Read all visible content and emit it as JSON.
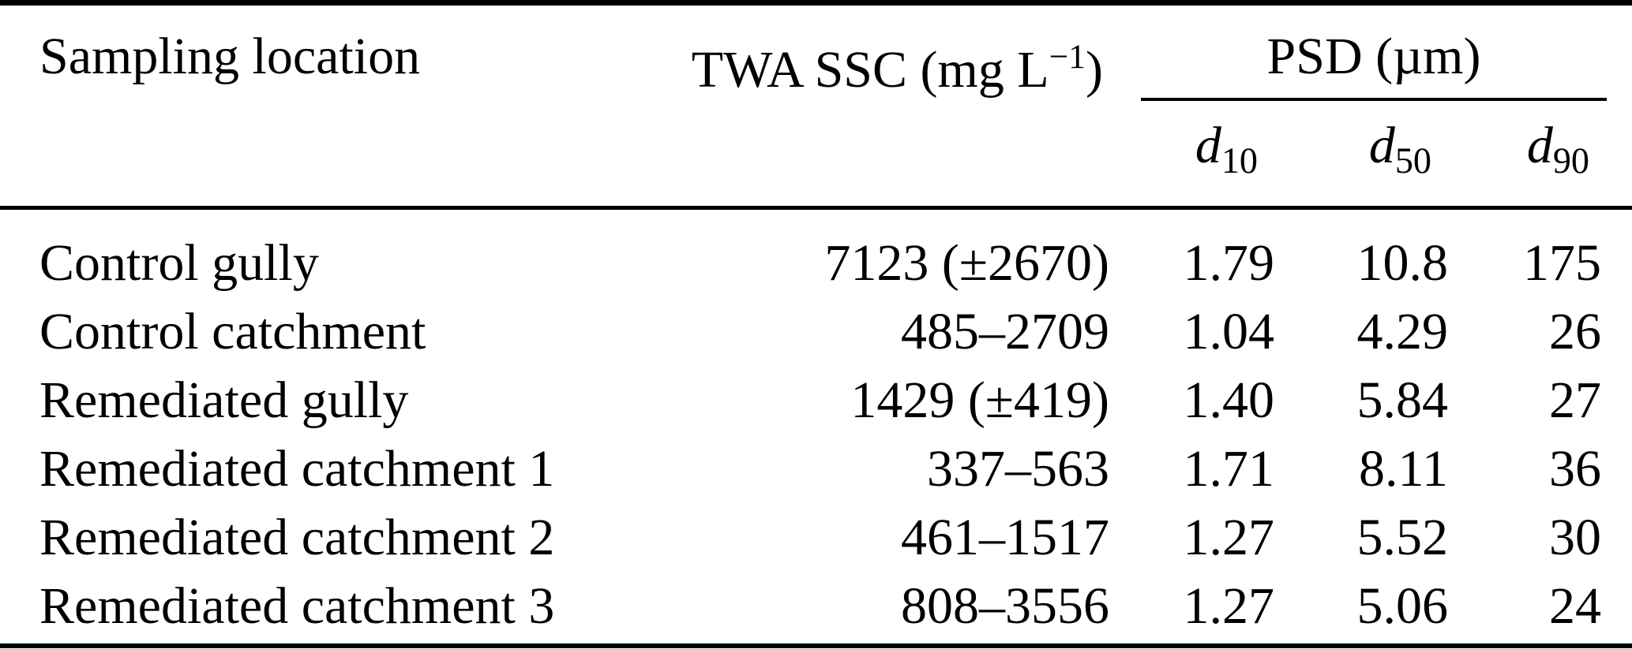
{
  "table": {
    "headers": {
      "sampling_location": "Sampling location",
      "twa_ssc": {
        "prefix": "TWA SSC (mg L",
        "sup": "−1",
        "suffix": ")"
      },
      "psd_group": "PSD (µm)",
      "d_columns": [
        {
          "base": "d",
          "sub": "10"
        },
        {
          "base": "d",
          "sub": "50"
        },
        {
          "base": "d",
          "sub": "90"
        }
      ]
    },
    "rows": [
      {
        "location": "Control gully",
        "twa_ssc": "7123 (±2670)",
        "d10": "1.79",
        "d50": "10.8",
        "d90": "175"
      },
      {
        "location": "Control catchment",
        "twa_ssc": "485–2709",
        "d10": "1.04",
        "d50": "4.29",
        "d90": "26"
      },
      {
        "location": "Remediated gully",
        "twa_ssc": "1429 (±419)",
        "d10": "1.40",
        "d50": "5.84",
        "d90": "27"
      },
      {
        "location": "Remediated catchment 1",
        "twa_ssc": "337–563",
        "d10": "1.71",
        "d50": "8.11",
        "d90": "36"
      },
      {
        "location": "Remediated catchment 2",
        "twa_ssc": "461–1517",
        "d10": "1.27",
        "d50": "5.52",
        "d90": "30"
      },
      {
        "location": "Remediated catchment 3",
        "twa_ssc": "808–3556",
        "d10": "1.27",
        "d50": "5.06",
        "d90": "24"
      }
    ],
    "colors": {
      "text": "#000000",
      "background": "#ffffff",
      "rule": "#000000"
    }
  },
  "chart_data": {
    "type": "table",
    "title": "",
    "columns": [
      "Sampling location",
      "TWA SSC (mg L−1)",
      "PSD d10 (µm)",
      "PSD d50 (µm)",
      "PSD d90 (µm)"
    ],
    "rows": [
      [
        "Control gully",
        "7123 (±2670)",
        1.79,
        10.8,
        175
      ],
      [
        "Control catchment",
        "485–2709",
        1.04,
        4.29,
        26
      ],
      [
        "Remediated gully",
        "1429 (±419)",
        1.4,
        5.84,
        27
      ],
      [
        "Remediated catchment 1",
        "337–563",
        1.71,
        8.11,
        36
      ],
      [
        "Remediated catchment 2",
        "461–1517",
        1.27,
        5.52,
        30
      ],
      [
        "Remediated catchment 3",
        "808–3556",
        1.27,
        5.06,
        24
      ]
    ]
  }
}
